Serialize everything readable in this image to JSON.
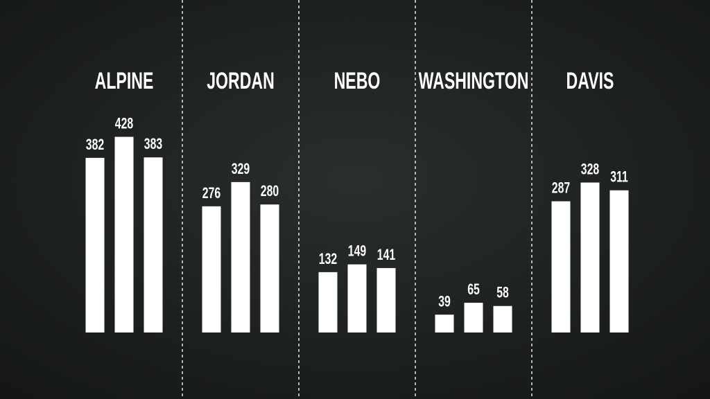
{
  "chart_data": {
    "type": "bar",
    "categories": [
      "ALPINE",
      "JORDAN",
      "NEBO",
      "WASHINGTON",
      "DAVIS"
    ],
    "series": [
      {
        "color": "#ffffff",
        "values": [
          382,
          276,
          132,
          39,
          287
        ]
      },
      {
        "color": "#ffffff",
        "values": [
          428,
          329,
          149,
          65,
          328
        ]
      },
      {
        "color": "#ffffff",
        "values": [
          383,
          280,
          141,
          58,
          311
        ]
      }
    ]
  }
}
